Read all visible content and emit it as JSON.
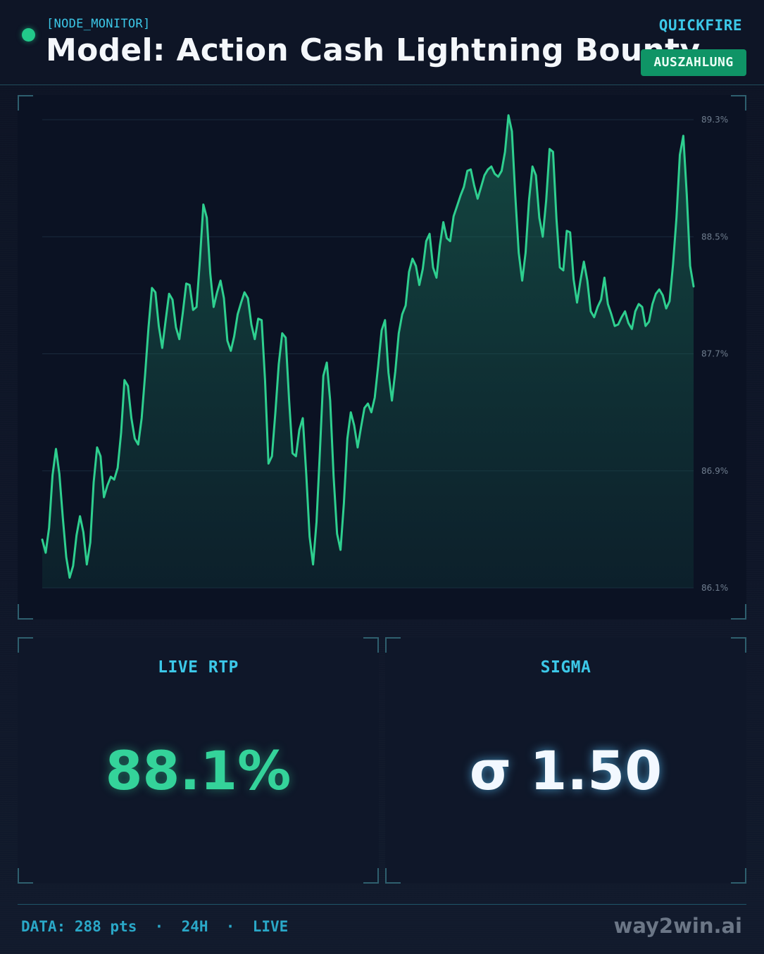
{
  "header": {
    "tag": "[NODE_MONITOR]",
    "title": "Model: Action Cash Lightning Bounty",
    "provider": "QUICKFIRE",
    "badge": "AUSZAHLUNG"
  },
  "colors": {
    "accent": "#3cc8e8",
    "line": "#2ecf8f",
    "status_dot": "#22c98a",
    "badge_bg": "#0f9466"
  },
  "stats": {
    "rtp_label": "LIVE RTP",
    "rtp_value": "88.1%",
    "sigma_label": "SIGMA",
    "sigma_value": "σ 1.50"
  },
  "footer": {
    "data_text": "DATA: 288 pts  ·  24H  ·  LIVE",
    "brand": "way2win.ai"
  },
  "chart_data": {
    "type": "area",
    "title": "",
    "xlabel": "",
    "ylabel": "",
    "ylim": [
      86.1,
      89.3
    ],
    "y_ticks": [
      "89.3%",
      "88.5%",
      "87.7%",
      "86.9%",
      "86.1%"
    ],
    "y_tick_values": [
      89.3,
      88.5,
      87.7,
      86.9,
      86.1
    ],
    "grid": true,
    "series": [
      {
        "values": [
          86.43,
          86.34,
          86.51,
          86.87,
          87.05,
          86.88,
          86.58,
          86.31,
          86.17,
          86.25,
          86.46,
          86.59,
          86.48,
          86.26,
          86.41,
          86.82,
          87.06,
          87.0,
          86.72,
          86.8,
          86.86,
          86.84,
          86.92,
          87.16,
          87.52,
          87.48,
          87.26,
          87.12,
          87.08,
          87.26,
          87.56,
          87.88,
          88.15,
          88.12,
          87.89,
          87.74,
          87.93,
          88.11,
          88.07,
          87.88,
          87.8,
          87.98,
          88.18,
          88.17,
          88.0,
          88.02,
          88.34,
          88.72,
          88.63,
          88.25,
          88.02,
          88.12,
          88.2,
          88.08,
          87.79,
          87.72,
          87.82,
          87.97,
          88.05,
          88.12,
          88.08,
          87.9,
          87.8,
          87.94,
          87.93,
          87.52,
          86.95,
          87.0,
          87.3,
          87.63,
          87.84,
          87.81,
          87.39,
          87.02,
          87.0,
          87.18,
          87.26,
          86.88,
          86.45,
          86.26,
          86.55,
          87.03,
          87.55,
          87.64,
          87.38,
          86.86,
          86.47,
          86.36,
          86.68,
          87.12,
          87.3,
          87.21,
          87.06,
          87.2,
          87.33,
          87.36,
          87.3,
          87.4,
          87.62,
          87.86,
          87.93,
          87.57,
          87.38,
          87.58,
          87.84,
          87.97,
          88.03,
          88.26,
          88.35,
          88.3,
          88.17,
          88.28,
          88.47,
          88.52,
          88.29,
          88.22,
          88.44,
          88.6,
          88.49,
          88.47,
          88.64,
          88.71,
          88.78,
          88.84,
          88.95,
          88.96,
          88.85,
          88.76,
          88.84,
          88.92,
          88.96,
          88.98,
          88.93,
          88.91,
          88.95,
          89.08,
          89.33,
          89.22,
          88.78,
          88.39,
          88.2,
          88.39,
          88.75,
          88.98,
          88.92,
          88.63,
          88.5,
          88.75,
          89.1,
          89.08,
          88.62,
          88.29,
          88.27,
          88.54,
          88.53,
          88.21,
          88.05,
          88.2,
          88.33,
          88.2,
          87.99,
          87.95,
          88.02,
          88.07,
          88.22,
          88.04,
          87.97,
          87.89,
          87.9,
          87.95,
          87.99,
          87.91,
          87.87,
          87.99,
          88.04,
          88.02,
          87.89,
          87.92,
          88.04,
          88.11,
          88.14,
          88.1,
          88.01,
          88.06,
          88.31,
          88.63,
          89.06,
          89.19,
          88.79,
          88.3,
          88.16
        ]
      }
    ]
  }
}
